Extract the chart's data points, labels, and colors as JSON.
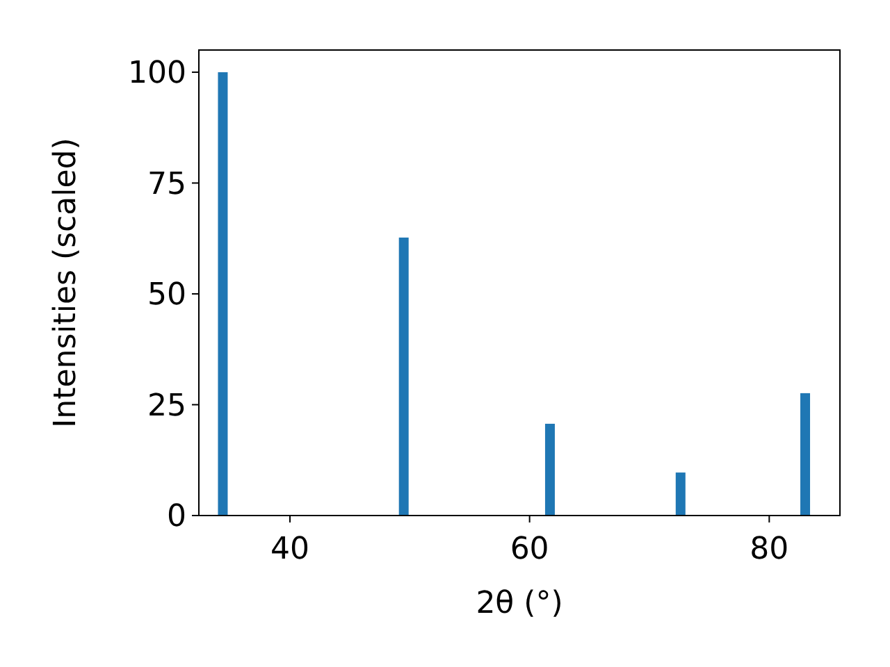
{
  "chart_data": {
    "type": "bar",
    "x": [
      34.4,
      49.5,
      61.7,
      72.6,
      83.0
    ],
    "values": [
      100,
      62.7,
      20.7,
      9.7,
      27.6
    ],
    "color": "#1f77b4",
    "xlabel": "2θ (°)",
    "ylabel": "Intensities (scaled)",
    "xlim": [
      32.4,
      85.9
    ],
    "ylim": [
      0,
      105
    ],
    "xticks": [
      40,
      60,
      80
    ],
    "yticks": [
      0,
      25,
      50,
      75,
      100
    ],
    "grid": false
  }
}
